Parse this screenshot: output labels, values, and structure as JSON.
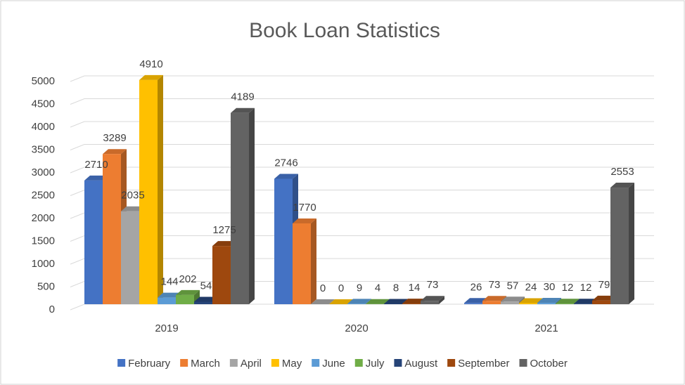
{
  "chart_data": {
    "type": "bar3d",
    "title": "Book Loan Statistics",
    "categories": [
      "2019",
      "2020",
      "2021"
    ],
    "series": [
      {
        "name": "February",
        "color": "#4472c4",
        "values": [
          2710,
          2746,
          26
        ]
      },
      {
        "name": "March",
        "color": "#ed7d31",
        "values": [
          3289,
          1770,
          73
        ]
      },
      {
        "name": "April",
        "color": "#a5a5a5",
        "values": [
          2035,
          0,
          57
        ]
      },
      {
        "name": "May",
        "color": "#ffc000",
        "values": [
          4910,
          0,
          24
        ]
      },
      {
        "name": "June",
        "color": "#5b9bd5",
        "values": [
          144,
          9,
          30
        ]
      },
      {
        "name": "July",
        "color": "#70ad47",
        "values": [
          202,
          4,
          12
        ]
      },
      {
        "name": "August",
        "color": "#264478",
        "values": [
          54,
          8,
          12
        ]
      },
      {
        "name": "September",
        "color": "#9e480e",
        "values": [
          1275,
          14,
          79
        ]
      },
      {
        "name": "October",
        "color": "#636363",
        "values": [
          4189,
          73,
          2553
        ]
      }
    ],
    "ylim": [
      0,
      5000
    ],
    "yticks": [
      0,
      500,
      1000,
      1500,
      2000,
      2500,
      3000,
      3500,
      4000,
      4500,
      5000
    ],
    "grid": true,
    "legend": "bottom"
  }
}
